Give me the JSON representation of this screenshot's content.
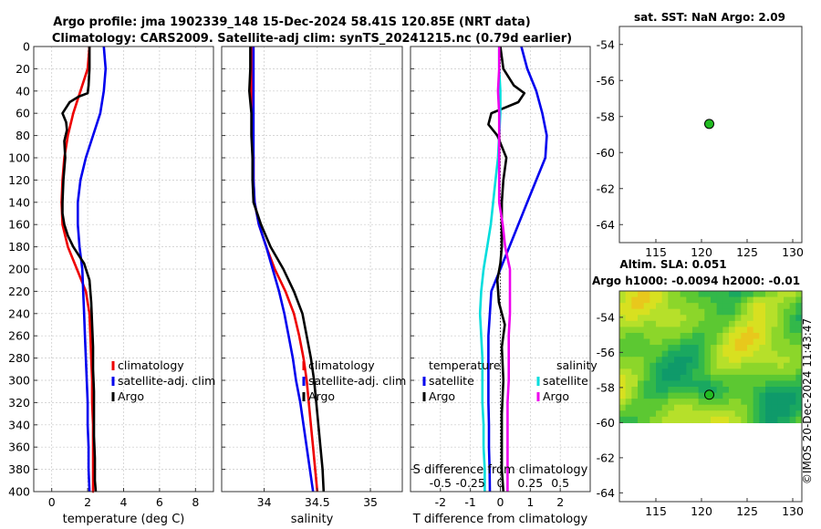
{
  "title": {
    "line1": "Argo profile: jma 1902339_148 15-Dec-2024 58.41S 120.85E (NRT data)",
    "line2": "Climatology: CARS2009. Satellite-adj clim: synTS_20241215.nc (0.79d earlier)"
  },
  "watermark": "©IMOS 20-Dec-2024 11:43:47",
  "colors": {
    "climatology": "#ee0000",
    "satellite": "#0000ee",
    "argo": "#000000",
    "sat_diff": "#00dddd",
    "argo_s_diff": "#ee00ee",
    "marker": "#22bb22"
  },
  "chart_data": [
    {
      "id": "temperature",
      "type": "line",
      "xlabel": "temperature (deg C)",
      "ylabel": "",
      "xlim": [
        -1,
        9
      ],
      "ylim": [
        400,
        0
      ],
      "xticks": [
        0,
        2,
        4,
        6,
        8
      ],
      "xtick_labels": [
        "0",
        "2",
        "4",
        "6",
        "8"
      ],
      "yticks": [
        0,
        20,
        40,
        60,
        80,
        100,
        120,
        140,
        160,
        180,
        200,
        220,
        240,
        260,
        280,
        300,
        320,
        340,
        360,
        380,
        400
      ],
      "ytick_labels": [
        "0",
        "20",
        "40",
        "60",
        "80",
        "100",
        "120",
        "140",
        "160",
        "180",
        "200",
        "220",
        "240",
        "260",
        "280",
        "300",
        "320",
        "340",
        "360",
        "380",
        "400"
      ],
      "grid": true,
      "legend": {
        "position": "right",
        "entries": [
          "climatology",
          "satellite-adj. clim",
          "Argo"
        ]
      },
      "series": [
        {
          "name": "climatology",
          "color": "#ee0000",
          "x": [
            2.1,
            2.0,
            1.6,
            1.2,
            0.9,
            0.7,
            0.6,
            0.55,
            0.6,
            0.9,
            1.4,
            1.9,
            2.1,
            2.15,
            2.2,
            2.25,
            2.25,
            2.3,
            2.3,
            2.3,
            2.3,
            2.35
          ],
          "y": [
            0,
            20,
            40,
            60,
            80,
            100,
            120,
            140,
            160,
            180,
            200,
            220,
            240,
            260,
            280,
            300,
            320,
            340,
            360,
            380,
            400,
            400
          ]
        },
        {
          "name": "satellite-adj. clim",
          "color": "#0000ee",
          "x": [
            2.9,
            3.0,
            2.9,
            2.7,
            2.3,
            1.9,
            1.6,
            1.45,
            1.45,
            1.55,
            1.7,
            1.75,
            1.8,
            1.85,
            1.9,
            1.95,
            2.0,
            2.0,
            2.05,
            2.05,
            2.1
          ],
          "y": [
            0,
            20,
            40,
            60,
            80,
            100,
            120,
            140,
            160,
            180,
            200,
            220,
            240,
            260,
            280,
            300,
            320,
            340,
            360,
            380,
            400
          ]
        },
        {
          "name": "Argo",
          "color": "#000000",
          "x": [
            2.1,
            2.1,
            2.05,
            2.0,
            1.5,
            1.0,
            0.6,
            0.8,
            0.85,
            0.7,
            0.75,
            0.65,
            0.6,
            0.6,
            0.7,
            0.9,
            1.2,
            1.6,
            1.8,
            2.1,
            2.2,
            2.25,
            2.3,
            2.3,
            2.35,
            2.35,
            2.35,
            2.4,
            2.4,
            2.45
          ],
          "y": [
            0,
            20,
            35,
            42,
            45,
            50,
            60,
            68,
            75,
            85,
            100,
            120,
            140,
            150,
            160,
            170,
            180,
            190,
            195,
            210,
            230,
            250,
            270,
            290,
            310,
            330,
            350,
            370,
            390,
            400
          ]
        }
      ]
    },
    {
      "id": "salinity",
      "type": "line",
      "xlabel": "salinity",
      "ylabel": "",
      "xlim": [
        33.6,
        35.3
      ],
      "ylim": [
        400,
        0
      ],
      "xticks": [
        34,
        34.5,
        35
      ],
      "xtick_labels": [
        "34",
        "34.5",
        "35"
      ],
      "grid": true,
      "legend": {
        "position": "right",
        "entries": [
          "climatology",
          "satellite-adj. clim",
          "Argo"
        ]
      },
      "series": [
        {
          "name": "climatology",
          "color": "#ee0000",
          "x": [
            33.88,
            33.88,
            33.88,
            33.885,
            33.89,
            33.9,
            33.9,
            33.91,
            33.95,
            34.02,
            34.1,
            34.2,
            34.28,
            34.33,
            34.37,
            34.4,
            34.42,
            34.44,
            34.46,
            34.48,
            34.5
          ],
          "y": [
            0,
            20,
            40,
            60,
            80,
            100,
            120,
            140,
            160,
            180,
            200,
            220,
            240,
            260,
            280,
            300,
            320,
            340,
            360,
            380,
            400
          ]
        },
        {
          "name": "satellite-adj. clim",
          "color": "#0000ee",
          "x": [
            33.9,
            33.9,
            33.9,
            33.9,
            33.9,
            33.9,
            33.9,
            33.91,
            33.95,
            34.02,
            34.08,
            34.14,
            34.19,
            34.23,
            34.27,
            34.3,
            34.34,
            34.37,
            34.4,
            34.43,
            34.46
          ],
          "y": [
            0,
            20,
            40,
            60,
            80,
            100,
            120,
            140,
            160,
            180,
            200,
            220,
            240,
            260,
            280,
            300,
            320,
            340,
            360,
            380,
            400
          ]
        },
        {
          "name": "Argo",
          "color": "#000000",
          "x": [
            33.87,
            33.87,
            33.86,
            33.88,
            33.88,
            33.89,
            33.89,
            33.9,
            33.97,
            34.06,
            34.18,
            34.28,
            34.36,
            34.4,
            34.44,
            34.47,
            34.49,
            34.51,
            34.53,
            34.55,
            34.56
          ],
          "y": [
            0,
            20,
            40,
            60,
            80,
            100,
            120,
            140,
            160,
            180,
            200,
            220,
            240,
            260,
            280,
            300,
            320,
            340,
            360,
            380,
            400
          ]
        }
      ]
    },
    {
      "id": "differences",
      "type": "line",
      "xlabel": "T difference from climatology",
      "xlabel_top": "S difference from climatology",
      "xlim": [
        -3,
        3
      ],
      "ylim": [
        400,
        0
      ],
      "xticks": [
        -2,
        -1,
        0,
        1,
        2
      ],
      "xtick_labels": [
        "-2",
        "-1",
        "0",
        "1",
        "2"
      ],
      "s_xticks": [
        -0.5,
        -0.25,
        0,
        0.25,
        0.5
      ],
      "s_xtick_labels": [
        "-0.5",
        "-0.25",
        "0",
        "0.25",
        "0.5"
      ],
      "grid": true,
      "legend": {
        "position": "right",
        "temperature_header": "temperature",
        "salinity_header": "salinity",
        "entries_left": [
          "satellite",
          "Argo"
        ],
        "entries_right": [
          "satellite",
          "Argo"
        ]
      },
      "series": [
        {
          "name": "temperature satellite",
          "color": "#0000ee",
          "x": [
            0.7,
            0.9,
            1.2,
            1.4,
            1.55,
            1.5,
            1.2,
            0.9,
            0.6,
            0.3,
            0.0,
            -0.3,
            -0.35,
            -0.4,
            -0.4,
            -0.4,
            -0.4,
            -0.38,
            -0.38,
            -0.36,
            -0.35
          ],
          "y": [
            0,
            20,
            40,
            60,
            80,
            100,
            120,
            140,
            160,
            180,
            200,
            220,
            240,
            260,
            280,
            300,
            320,
            340,
            360,
            380,
            400
          ]
        },
        {
          "name": "temperature Argo",
          "color": "#000000",
          "x": [
            0.0,
            0.1,
            0.45,
            0.8,
            0.6,
            -0.3,
            -0.4,
            -0.1,
            0.2,
            0.1,
            0.05,
            0.05,
            0.05,
            0.0,
            -0.1,
            -0.05,
            0.15,
            0.05,
            0.1,
            0.05,
            0.05,
            0.05,
            0.1
          ],
          "y": [
            0,
            20,
            35,
            42,
            50,
            60,
            70,
            80,
            100,
            120,
            140,
            160,
            180,
            195,
            210,
            230,
            250,
            270,
            300,
            330,
            360,
            380,
            400
          ]
        },
        {
          "name": "salinity satellite",
          "color": "#00dddd",
          "x": [
            -0.01,
            -0.01,
            0.0,
            0.0,
            -0.01,
            -0.02,
            -0.04,
            -0.06,
            -0.08,
            -0.11,
            -0.14,
            -0.16,
            -0.17,
            -0.16,
            -0.15,
            -0.15,
            -0.15,
            -0.14,
            -0.14,
            -0.13,
            -0.13
          ],
          "y": [
            0,
            20,
            40,
            60,
            80,
            100,
            120,
            140,
            160,
            180,
            200,
            220,
            240,
            260,
            280,
            300,
            320,
            340,
            360,
            380,
            400
          ]
        },
        {
          "name": "salinity Argo",
          "color": "#ee00ee",
          "x": [
            -0.01,
            -0.01,
            -0.02,
            -0.01,
            -0.01,
            -0.01,
            -0.01,
            -0.01,
            0.02,
            0.04,
            0.08,
            0.08,
            0.08,
            0.07,
            0.07,
            0.07,
            0.06,
            0.06,
            0.06,
            0.06,
            0.06
          ],
          "y": [
            0,
            20,
            40,
            60,
            80,
            100,
            120,
            140,
            160,
            180,
            200,
            220,
            240,
            260,
            280,
            300,
            320,
            340,
            360,
            380,
            400
          ]
        }
      ]
    },
    {
      "id": "sst_map",
      "type": "scatter",
      "title": "sat. SST: NaN Argo: 2.09",
      "xlim": [
        111,
        131
      ],
      "ylim": [
        -65,
        -53
      ],
      "xticks": [
        115,
        120,
        125,
        130
      ],
      "xtick_labels": [
        "115",
        "120",
        "125",
        "130"
      ],
      "yticks": [
        -54,
        -56,
        -58,
        -60,
        -62,
        -64
      ],
      "ytick_labels": [
        "-54",
        "-56",
        "-58",
        "-60",
        "-62",
        "-64"
      ],
      "points": [
        {
          "lon": 120.85,
          "lat": -58.41
        }
      ]
    },
    {
      "id": "sla_map",
      "type": "heatmap",
      "title": "Altim. SLA: 0.051",
      "subtitle": "Argo h1000: -0.0094 h2000: -0.01",
      "xlim": [
        111,
        131
      ],
      "ylim": [
        -64.5,
        -52.5
      ],
      "data_lat_range": [
        -60,
        -52.5
      ],
      "xticks": [
        115,
        120,
        125,
        130
      ],
      "xtick_labels": [
        "115",
        "120",
        "125",
        "130"
      ],
      "yticks": [
        -54,
        -56,
        -58,
        -60,
        -62,
        -64
      ],
      "ytick_labels": [
        "-54",
        "-56",
        "-58",
        "-60",
        "-62",
        "-64"
      ],
      "points": [
        {
          "lon": 120.85,
          "lat": -58.41
        }
      ]
    }
  ]
}
